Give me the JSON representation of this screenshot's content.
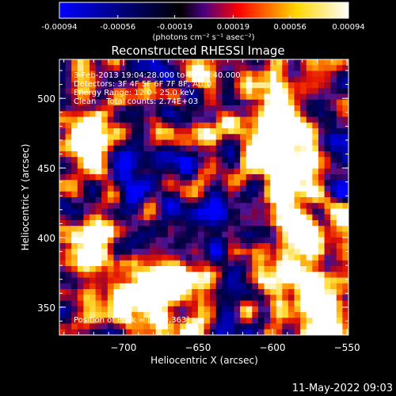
{
  "colorbar": {
    "ticks": [
      "-0.00094",
      "-0.00056",
      "-0.00019",
      "0.00019",
      "0.00056",
      "0.00094"
    ],
    "tick_values": [
      -0.00094,
      -0.00056,
      -0.00019,
      0.00019,
      0.00056,
      0.00094
    ],
    "unit_label": "(photons cm⁻² s⁻¹ asec⁻²)",
    "colors": [
      "#0000ff",
      "#000000",
      "#4b0082",
      "#ff0000",
      "#ffd700",
      "#ffffff"
    ]
  },
  "chart_data": {
    "type": "heatmap",
    "title": "Reconstructed RHESSI Image",
    "xlabel": "Heliocentric X (arcsec)",
    "ylabel": "Heliocentric Y (arcsec)",
    "xlim": [
      -743,
      -549
    ],
    "ylim": [
      330,
      528
    ],
    "x_ticks": [
      -700,
      -650,
      -600,
      -550
    ],
    "x_tick_labels": [
      "−700",
      "−650",
      "−600",
      "−550"
    ],
    "y_ticks": [
      350,
      400,
      450,
      500
    ],
    "y_tick_labels": [
      "350",
      "400",
      "450",
      "500"
    ],
    "annotations": [
      "3-Feb-2013 19:04:28.000 to 19:06:40.000",
      "Detectors: 3F 4F 5F 6F 7F 8F, Att 0",
      "Energy Range: 12.0 - 25.0 keV",
      "Clean    Total counts: 2.74E+03"
    ],
    "peak_label": "Position of Peak = [-659,363]",
    "peak": [
      -659,
      363
    ],
    "value_range": [
      -0.00094,
      0.00094
    ]
  },
  "footer": {
    "timestamp": "11-May-2022 09:03"
  }
}
